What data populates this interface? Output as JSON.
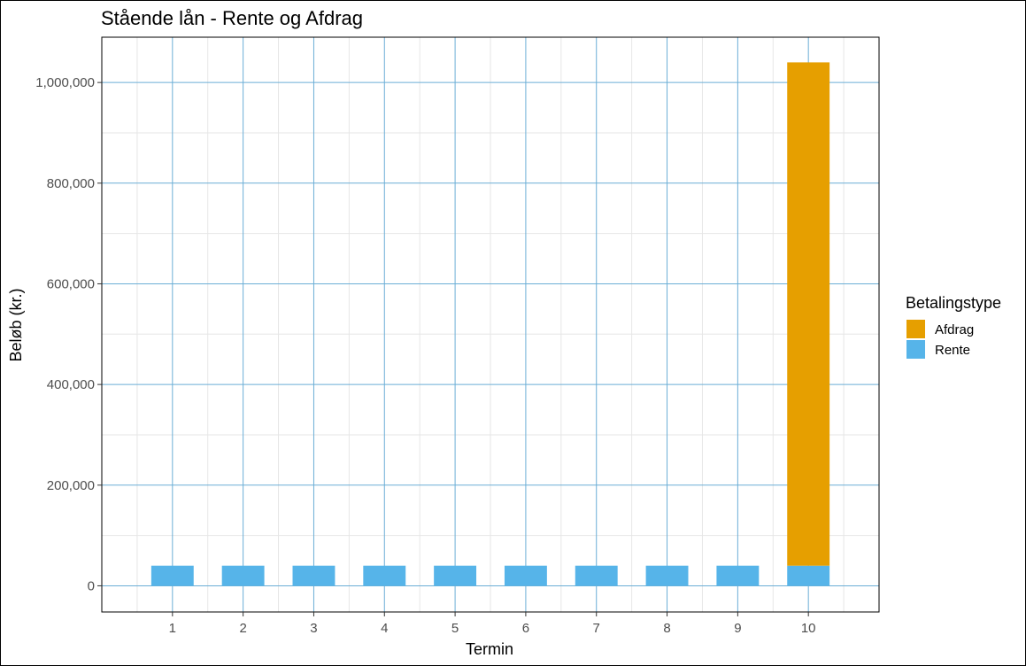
{
  "chart_data": {
    "type": "bar",
    "stacked": true,
    "title": "Stående lån - Rente og Afdrag",
    "xlabel": "Termin",
    "ylabel": "Beløb (kr.)",
    "categories": [
      "1",
      "2",
      "3",
      "4",
      "5",
      "6",
      "7",
      "8",
      "9",
      "10"
    ],
    "series": [
      {
        "name": "Rente",
        "color": "#56B4E9",
        "values": [
          40000,
          40000,
          40000,
          40000,
          40000,
          40000,
          40000,
          40000,
          40000,
          40000
        ]
      },
      {
        "name": "Afdrag",
        "color": "#E69F00",
        "values": [
          0,
          0,
          0,
          0,
          0,
          0,
          0,
          0,
          0,
          1000000
        ]
      }
    ],
    "ylim": [
      -52000,
      1090000
    ],
    "yticks": [
      0,
      200000,
      400000,
      600000,
      800000,
      1000000
    ],
    "ytick_labels": [
      "0",
      "200,000",
      "400,000",
      "600,000",
      "800,000",
      "1,000,000"
    ],
    "grid": true,
    "legend": {
      "title": "Betalingstype",
      "position": "right",
      "entries": [
        {
          "name": "Afdrag",
          "color": "#E69F00"
        },
        {
          "name": "Rente",
          "color": "#56B4E9"
        }
      ]
    },
    "colors": {
      "major_grid": "#6BAED6",
      "minor_grid": "#e6e6e6",
      "panel_border": "#000000"
    }
  }
}
